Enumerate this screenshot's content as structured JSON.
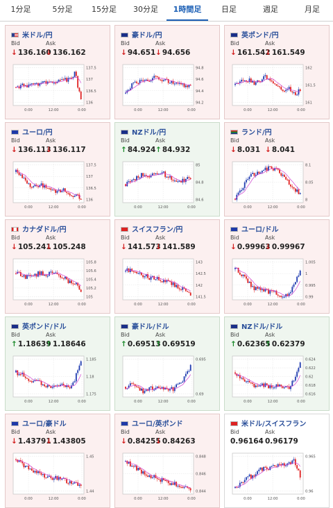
{
  "tabs": [
    {
      "label": "1分足",
      "active": false
    },
    {
      "label": "5分足",
      "active": false
    },
    {
      "label": "15分足",
      "active": false
    },
    {
      "label": "30分足",
      "active": false
    },
    {
      "label": "1時間足",
      "active": true
    },
    {
      "label": "日足",
      "active": false
    },
    {
      "label": "週足",
      "active": false
    },
    {
      "label": "月足",
      "active": false
    }
  ],
  "labels": {
    "bid": "Bid",
    "ask": "Ask"
  },
  "colors": {
    "up_candle": "#1f3bb0",
    "down_candle": "#e02020",
    "ma_line": "#d040d0",
    "down_arrow": "#d21e1e",
    "up_arrow": "#1a8a2a"
  },
  "cards": [
    {
      "title": "米ドル/円",
      "flag": "us-flag-icon",
      "direction": "down",
      "bid": "136.160",
      "ask": "136.162",
      "chart_data": {
        "type": "candlestick",
        "x_ticks": [
          "0:00",
          "12:00",
          "0:00"
        ],
        "y_ticks": [
          "137.5",
          "137",
          "136.5",
          "136"
        ]
      }
    },
    {
      "title": "豪ドル/円",
      "flag": "au-flag-icon",
      "direction": "down",
      "bid": "94.651",
      "ask": "94.656",
      "chart_data": {
        "type": "candlestick",
        "x_ticks": [
          "0:00",
          "12:00",
          "0:00"
        ],
        "y_ticks": [
          "94.8",
          "94.6",
          "94.4",
          "94.2"
        ]
      }
    },
    {
      "title": "英ポンド/円",
      "flag": "uk-flag-icon",
      "direction": "down",
      "bid": "161.542",
      "ask": "161.549",
      "chart_data": {
        "type": "candlestick",
        "x_ticks": [
          "0:00",
          "12:00",
          "0:00"
        ],
        "y_ticks": [
          "162",
          "161.5",
          "161"
        ]
      }
    },
    {
      "title": "ユーロ/円",
      "flag": "eu-flag-icon",
      "direction": "down",
      "bid": "136.113",
      "ask": "136.117",
      "chart_data": {
        "type": "candlestick",
        "x_ticks": [
          "0:00",
          "12:00",
          "0:00"
        ],
        "y_ticks": [
          "137.5",
          "137",
          "136.5",
          "136"
        ]
      }
    },
    {
      "title": "NZドル/円",
      "flag": "nz-flag-icon",
      "direction": "up",
      "bid": "84.924",
      "ask": "84.932",
      "chart_data": {
        "type": "candlestick",
        "x_ticks": [
          "0:00",
          "12:00",
          "0:00"
        ],
        "y_ticks": [
          "85",
          "84.8",
          "84.6"
        ]
      }
    },
    {
      "title": "ランド/円",
      "flag": "za-flag-icon",
      "direction": "down",
      "bid": "8.031",
      "ask": "8.041",
      "chart_data": {
        "type": "candlestick",
        "x_ticks": [
          "0:00",
          "12:00",
          "0:00"
        ],
        "y_ticks": [
          "8.1",
          "8.05",
          "8"
        ]
      }
    },
    {
      "title": "カナダドル/円",
      "flag": "ca-flag-icon",
      "direction": "down",
      "bid": "105.241",
      "ask": "105.248",
      "chart_data": {
        "type": "candlestick",
        "x_ticks": [
          "0:00",
          "12:00",
          "0:00"
        ],
        "y_ticks": [
          "105.8",
          "105.6",
          "105.4",
          "105.2",
          "105"
        ]
      }
    },
    {
      "title": "スイスフラン/円",
      "flag": "ch-flag-icon",
      "direction": "down",
      "bid": "141.573",
      "ask": "141.589",
      "chart_data": {
        "type": "candlestick",
        "x_ticks": [
          "0:00",
          "12:00",
          "0:00"
        ],
        "y_ticks": [
          "143",
          "142.5",
          "142",
          "141.5"
        ]
      }
    },
    {
      "title": "ユーロ/ドル",
      "flag": "eu-flag-icon",
      "direction": "down",
      "bid": "0.99963",
      "ask": "0.99967",
      "chart_data": {
        "type": "candlestick",
        "x_ticks": [
          "0:00",
          "12:00",
          "0:00"
        ],
        "y_ticks": [
          "1.005",
          "1",
          "0.995",
          "0.99"
        ]
      }
    },
    {
      "title": "英ポンド/ドル",
      "flag": "uk-flag-icon",
      "direction": "up",
      "bid": "1.18639",
      "ask": "1.18646",
      "chart_data": {
        "type": "candlestick",
        "x_ticks": [
          "0:00",
          "12:00",
          "0:00"
        ],
        "y_ticks": [
          "1.185",
          "1.18",
          "1.175"
        ]
      }
    },
    {
      "title": "豪ドル/ドル",
      "flag": "au-flag-icon",
      "direction": "up",
      "bid": "0.69513",
      "ask": "0.69519",
      "chart_data": {
        "type": "candlestick",
        "x_ticks": [
          "0:00",
          "12:00",
          "0:00"
        ],
        "y_ticks": [
          "0.695",
          "0.69"
        ]
      }
    },
    {
      "title": "NZドル/ドル",
      "flag": "nz-flag-icon",
      "direction": "up",
      "bid": "0.62365",
      "ask": "0.62379",
      "chart_data": {
        "type": "candlestick",
        "x_ticks": [
          "0:00",
          "12:00",
          "0:00"
        ],
        "y_ticks": [
          "0.624",
          "0.622",
          "0.62",
          "0.618",
          "0.616"
        ]
      }
    },
    {
      "title": "ユーロ/豪ドル",
      "flag": "eu-flag-icon",
      "direction": "down",
      "bid": "1.43791",
      "ask": "1.43805",
      "chart_data": {
        "type": "candlestick",
        "x_ticks": [
          "0:00",
          "12:00",
          "0:00"
        ],
        "y_ticks": [
          "1.45",
          "1.44"
        ]
      }
    },
    {
      "title": "ユーロ/英ポンド",
      "flag": "eu-flag-icon",
      "direction": "down",
      "bid": "0.84255",
      "ask": "0.84263",
      "chart_data": {
        "type": "candlestick",
        "x_ticks": [
          "0:00",
          "12:00",
          "0:00"
        ],
        "y_ticks": [
          "0.848",
          "0.846",
          "0.844"
        ]
      }
    },
    {
      "title": "米ドル/スイスフラン",
      "flag": "ch-flag-icon",
      "direction": "none",
      "bid": "0.96164",
      "ask": "0.96179",
      "chart_data": {
        "type": "candlestick",
        "x_ticks": [
          "0:00",
          "12:00",
          "0:00"
        ],
        "y_ticks": [
          "0.965",
          "0.96"
        ]
      }
    }
  ]
}
